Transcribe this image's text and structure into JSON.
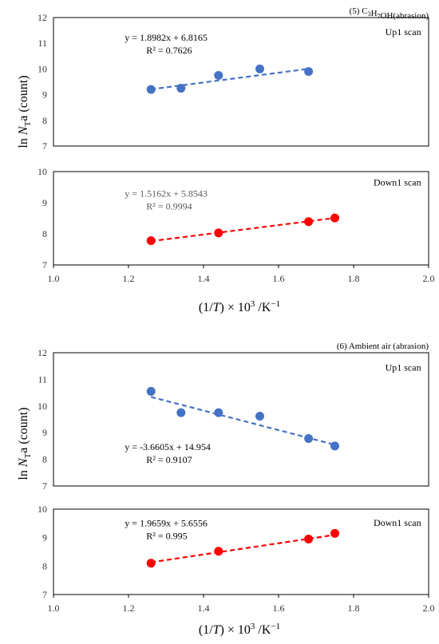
{
  "figure": {
    "ylabel_prefix": "ln ",
    "ylabel_var": "N",
    "ylabel_sub": "T",
    "ylabel_suffix": "a (count)",
    "xlabel_open": "(1/",
    "xlabel_var": "T",
    "xlabel_mid": ") × 10",
    "xlabel_sup": "3",
    "xlabel_unit": " /K",
    "xlabel_unit_sup": "−1"
  },
  "chart_data": [
    {
      "type": "scatter",
      "group_title": "(5) C3H7OH(abrasion)",
      "title": "Up1 scan",
      "equation": "y = 1.8982x + 6.8165",
      "r2": "R² = 0.7626",
      "color": "#4472C4",
      "x": [
        1.26,
        1.34,
        1.44,
        1.55,
        1.68
      ],
      "y": [
        9.2,
        9.25,
        9.75,
        10.0,
        9.9
      ],
      "trendline": {
        "slope": 1.8982,
        "intercept": 6.8165
      },
      "ylim": [
        7,
        12
      ],
      "yticks": [
        "7",
        "8",
        "9",
        "10",
        "11",
        "12"
      ],
      "xlim": [
        1.0,
        2.0
      ],
      "xticks": []
    },
    {
      "type": "scatter",
      "title": "Down1 scan",
      "equation": "y = 1.5162x + 5.8543",
      "r2": "R² = 0.9994",
      "color": "#FF0000",
      "x": [
        1.26,
        1.44,
        1.68,
        1.75
      ],
      "y": [
        7.78,
        8.03,
        8.39,
        8.51
      ],
      "trendline": {
        "slope": 1.5162,
        "intercept": 5.8543
      },
      "ylim": [
        7,
        10
      ],
      "yticks": [
        "7",
        "8",
        "9",
        "10"
      ],
      "xlim": [
        1.0,
        2.0
      ],
      "xticks": [
        "1.0",
        "1.2",
        "1.4",
        "1.6",
        "1.8",
        "2.0"
      ]
    },
    {
      "type": "scatter",
      "group_title": "(6) Ambient air (abrasion)",
      "title": "Up1 scan",
      "equation": "y = -3.6605x + 14.954",
      "r2": "R² = 0.9107",
      "color": "#4472C4",
      "x": [
        1.26,
        1.34,
        1.44,
        1.55,
        1.68,
        1.75
      ],
      "y": [
        10.55,
        9.75,
        9.75,
        9.62,
        8.78,
        8.5
      ],
      "trendline": {
        "slope": -3.6605,
        "intercept": 14.954
      },
      "ylim": [
        7,
        12
      ],
      "yticks": [
        "7",
        "8",
        "9",
        "10",
        "11",
        "12"
      ],
      "xlim": [
        1.0,
        2.0
      ],
      "xticks": []
    },
    {
      "type": "scatter",
      "title": "Down1 scan",
      "equation": "y = 1.9659x + 5.6556",
      "r2": "R² = 0.995",
      "color": "#FF0000",
      "x": [
        1.26,
        1.44,
        1.68,
        1.75
      ],
      "y": [
        8.1,
        8.52,
        8.95,
        9.15
      ],
      "trendline": {
        "slope": 1.9659,
        "intercept": 5.6556
      },
      "ylim": [
        7,
        10
      ],
      "yticks": [
        "7",
        "8",
        "9",
        "10"
      ],
      "xlim": [
        1.0,
        2.0
      ],
      "xticks": [
        "1.0",
        "1.2",
        "1.4",
        "1.6",
        "1.8",
        "2.0"
      ]
    }
  ]
}
